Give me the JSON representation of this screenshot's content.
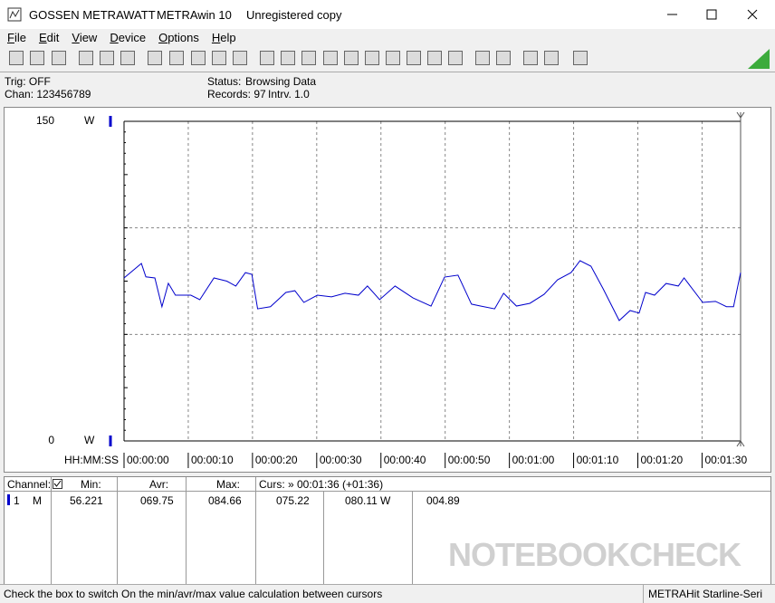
{
  "window": {
    "title": "GOSSEN METRAWATT",
    "app": "METRAwin 10",
    "license": "Unregistered copy"
  },
  "menu": [
    "File",
    "Edit",
    "View",
    "Device",
    "Options",
    "Help"
  ],
  "info": {
    "trig": "Trig: OFF",
    "chan": "Chan: 123456789",
    "status_label": "Status:",
    "status": "Browsing Data",
    "records": "Records: 97",
    "interval": "Intrv. 1.0"
  },
  "chart_data": {
    "type": "line",
    "y_unit": "W",
    "x_label": "HH:MM:SS",
    "x": [
      0,
      2.7,
      3.4,
      4.8,
      5.9,
      6.9,
      8,
      10.4,
      11.8,
      14,
      16,
      17.4,
      18.9,
      19.9,
      20.8,
      22.8,
      25.2,
      26.6,
      28,
      30.1,
      32.3,
      34.4,
      36.5,
      37.9,
      39.8,
      42.2,
      45,
      47.8,
      49.9,
      52,
      54.1,
      55.5,
      57.7,
      59.1,
      61.1,
      63.2,
      65.4,
      67.5,
      69.6,
      71,
      72.7,
      74.6,
      77.1,
      78.8,
      80.2,
      81.2,
      82.6,
      84.4,
      86.3,
      87.2,
      90.1,
      92.1,
      93.8,
      94.9,
      96
    ],
    "series": [
      {
        "color": "#0000cc",
        "values": [
          76.5,
          83.3,
          77,
          76.5,
          63,
          74,
          68.4,
          68.4,
          66.3,
          76.5,
          75,
          72.7,
          79,
          78.2,
          62,
          63,
          69.7,
          70.5,
          65,
          68.4,
          67.6,
          69.3,
          68.4,
          72.7,
          66.3,
          72.7,
          67.1,
          63.3,
          76.9,
          77.8,
          64.2,
          63.3,
          62,
          69.3,
          63.3,
          64.6,
          68.8,
          75.6,
          79,
          84.6,
          82,
          71.4,
          56.5,
          61.2,
          60,
          69.7,
          68.4,
          73.9,
          72.7,
          76.5,
          65,
          65.5,
          63,
          63,
          79
        ]
      }
    ],
    "xlim": [
      0,
      96
    ],
    "ylim": [
      0,
      150
    ],
    "xticks": [
      {
        "value": 0,
        "label": "00:00:00"
      },
      {
        "value": 10,
        "label": "00:00:10"
      },
      {
        "value": 20,
        "label": "00:00:20"
      },
      {
        "value": 30,
        "label": "00:00:30"
      },
      {
        "value": 40,
        "label": "00:00:40"
      },
      {
        "value": 50,
        "label": "00:00:50"
      },
      {
        "value": 60,
        "label": "00:01:00"
      },
      {
        "value": 70,
        "label": "00:01:10"
      },
      {
        "value": 80,
        "label": "00:01:20"
      },
      {
        "value": 90,
        "label": "00:01:30"
      }
    ],
    "yticks": [
      0,
      150
    ],
    "grid_lines": [
      50,
      100
    ],
    "cursor": 96
  },
  "table": {
    "headers": [
      "Channel:",
      "Min:",
      "Avr:",
      "Max:",
      "Curs: » 00:01:36 (+01:36)"
    ],
    "rows": [
      [
        "1",
        "M",
        "56.221",
        "069.75",
        "084.66",
        "075.22",
        "080.11",
        "W",
        "004.89"
      ]
    ]
  },
  "status_bar": [
    "Check the box to switch On the min/avr/max value calculation between cursors",
    "METRAHit Starline-Seri"
  ],
  "watermark": "NOTEBOOKCHECK"
}
